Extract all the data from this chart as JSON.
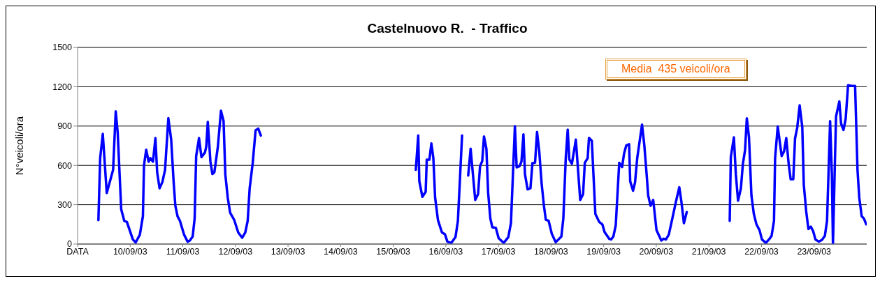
{
  "chart_data": {
    "type": "line",
    "title": "Castelnuovo R.  - Traffico",
    "ylabel": "N°veicoli/ora",
    "annotations": [
      "Media  435 veicoli/ora"
    ],
    "xlim": [
      "--09-09",
      "--09-24"
    ],
    "xticks": [
      {
        "value": "--09-09",
        "label": "DATA"
      },
      {
        "value": "--09-10",
        "label": "10/09/03"
      },
      {
        "value": "--09-11",
        "label": "11/09/03"
      },
      {
        "value": "--09-12",
        "label": "12/09/03"
      },
      {
        "value": "--09-13",
        "label": "13/09/03"
      },
      {
        "value": "--09-14",
        "label": "14/09/03"
      },
      {
        "value": "--09-15",
        "label": "15/09/03"
      },
      {
        "value": "--09-16",
        "label": "16/09/03"
      },
      {
        "value": "--09-17",
        "label": "17/09/03"
      },
      {
        "value": "--09-18",
        "label": "18/09/03"
      },
      {
        "value": "--09-19",
        "label": "19/09/03"
      },
      {
        "value": "--09-20",
        "label": "20/09/03"
      },
      {
        "value": "--09-21",
        "label": "21/09/03"
      },
      {
        "value": "--09-22",
        "label": "22/09/03"
      },
      {
        "value": "--09-23",
        "label": "23/09/03"
      }
    ],
    "ylim": [
      0,
      1500
    ],
    "yticks": [
      0,
      300,
      600,
      900,
      1200,
      1500
    ],
    "grid": "y",
    "marker": "none",
    "line_style": "solid",
    "series": [
      {
        "color": "#0000ff",
        "x": [
          "--09-09T09:30",
          "--09-09T10:18",
          "--09-09T11:30",
          "--09-09T13:18",
          "--09-09T16:12",
          "--09-09T17:24",
          "--09-09T18:18",
          "--09-09T19:54",
          "--09-09T21:18",
          "--09-09T22:30",
          "--09-10T01:12",
          "--09-10T02:30",
          "--09-10T04:24",
          "--09-10T05:48",
          "--09-10T06:18",
          "--09-10T07:18",
          "--09-10T08:24",
          "--09-10T09:12",
          "--09-10T10:24",
          "--09-10T11:30",
          "--09-10T12:18",
          "--09-10T13:24",
          "--09-10T14:42",
          "--09-10T15:54",
          "--09-10T17:24",
          "--09-10T18:42",
          "--09-10T19:48",
          "--09-10T20:36",
          "--09-10T21:36",
          "--09-10T22:42",
          "--09-11T00:36",
          "--09-11T02:12",
          "--09-11T03:12",
          "--09-11T04:30",
          "--09-11T05:24",
          "--09-11T06:06",
          "--09-11T07:24",
          "--09-11T08:30",
          "--09-11T10:06",
          "--09-11T10:42",
          "--09-11T11:24",
          "--09-11T12:36",
          "--09-11T13:30",
          "--09-11T14:24",
          "--09-11T16:00",
          "--09-11T17:24",
          "--09-11T18:36",
          "--09-11T19:24",
          "--09-11T20:30",
          "--09-11T21:36",
          "--09-11T23:24",
          "--09-12T01:18",
          "--09-12T03:06",
          "--09-12T04:30",
          "--09-12T05:36",
          "--09-12T06:30",
          "--09-12T07:54",
          "--09-12T09:12",
          "--09-12T10:24",
          "--09-12T11:36",
          "--09-13T04:00",
          "--09-15T10:18",
          "--09-15T11:24",
          "--09-15T11:54",
          "--09-15T13:18",
          "--09-15T14:48",
          "--09-15T15:18",
          "--09-15T16:30",
          "--09-15T17:24",
          "--09-15T18:18",
          "--09-15T19:06",
          "--09-15T20:24",
          "--09-15T22:12",
          "--09-15T23:36",
          "--09-16T00:42",
          "--09-16T02:30",
          "--09-16T04:24",
          "--09-16T05:30",
          "--09-16T07:24",
          "--09-16T08:48",
          "--09-16T10:12",
          "--09-16T11:18",
          "--09-16T13:24",
          "--09-16T14:42",
          "--09-16T15:36",
          "--09-16T16:36",
          "--09-16T17:24",
          "--09-16T18:30",
          "--09-16T19:18",
          "--09-16T20:18",
          "--09-16T21:12",
          "--09-16T22:48",
          "--09-17T00:06",
          "--09-17T02:24",
          "--09-17T04:30",
          "--09-17T05:42",
          "--09-17T07:30",
          "--09-17T08:18",
          "--09-17T09:36",
          "--09-17T10:30",
          "--09-17T11:24",
          "--09-17T12:06",
          "--09-17T13:18",
          "--09-17T14:36",
          "--09-17T15:30",
          "--09-17T16:42",
          "--09-17T17:36",
          "--09-17T18:36",
          "--09-17T19:42",
          "--09-17T20:48",
          "--09-17T21:36",
          "--09-17T22:54",
          "--09-18T00:18",
          "--09-18T02:06",
          "--09-18T04:42",
          "--09-18T05:36",
          "--09-18T06:42",
          "--09-18T07:36",
          "--09-18T08:18",
          "--09-18T09:30",
          "--09-18T11:18",
          "--09-18T13:18",
          "--09-18T14:36",
          "--09-18T15:24",
          "--09-18T16:42",
          "--09-18T17:18",
          "--09-18T18:36",
          "--09-18T20:12",
          "--09-18T22:00",
          "--09-18T23:24",
          "--09-19T00:24",
          "--09-19T02:36",
          "--09-19T03:24",
          "--09-19T04:24",
          "--09-19T05:30",
          "--09-19T07:06",
          "--09-19T08:24",
          "--09-19T09:18",
          "--09-19T10:18",
          "--09-19T11:36",
          "--09-19T12:06",
          "--09-19T13:24",
          "--09-19T14:18",
          "--09-19T15:18",
          "--09-19T17:30",
          "--09-19T18:30",
          "--09-19T19:36",
          "--09-19T20:18",
          "--09-19T21:24",
          "--09-19T22:36",
          "--09-20T00:06",
          "--09-20T02:18",
          "--09-20T03:18",
          "--09-20T04:24",
          "--09-20T05:42",
          "--09-20T07:06",
          "--09-20T08:54",
          "--09-20T10:30",
          "--09-20T11:30",
          "--09-20T12:36",
          "--09-20T13:54",
          "--09-20T23:00",
          "--09-21T09:30",
          "--09-21T10:00",
          "--09-21T11:24",
          "--09-21T12:18",
          "--09-21T13:18",
          "--09-21T14:36",
          "--09-21T15:30",
          "--09-21T16:30",
          "--09-21T17:18",
          "--09-21T18:18",
          "--09-21T19:24",
          "--09-21T20:30",
          "--09-21T21:42",
          "--09-21T23:06",
          "--09-22T00:12",
          "--09-22T02:00",
          "--09-22T03:36",
          "--09-22T04:36",
          "--09-22T05:42",
          "--09-22T06:12",
          "--09-22T07:24",
          "--09-22T09:12",
          "--09-22T10:18",
          "--09-22T11:18",
          "--09-22T12:24",
          "--09-22T13:18",
          "--09-22T14:30",
          "--09-22T15:18",
          "--09-22T16:18",
          "--09-22T17:24",
          "--09-22T18:36",
          "--09-22T19:18",
          "--09-22T20:24",
          "--09-22T21:24",
          "--09-22T22:30",
          "--09-22T23:36",
          "--09-23T00:36",
          "--09-23T02:12",
          "--09-23T03:36",
          "--09-23T04:54",
          "--09-23T05:54",
          "--09-23T07:18",
          "--09-23T08:06",
          "--09-23T08:36",
          "--09-23T09:18",
          "--09-23T10:00",
          "--09-23T11:30",
          "--09-23T12:18",
          "--09-23T13:24",
          "--09-23T14:24",
          "--09-23T15:30",
          "--09-23T17:06",
          "--09-23T18:42",
          "--09-23T19:48",
          "--09-23T20:36",
          "--09-23T21:42",
          "--09-23T22:42",
          "--09-23T23:48"
        ],
        "values": [
          182,
          655,
          840,
          389,
          566,
          1012,
          849,
          265,
          177,
          168,
          35,
          12,
          71,
          212,
          601,
          720,
          628,
          655,
          628,
          808,
          548,
          425,
          474,
          566,
          960,
          796,
          478,
          292,
          212,
          177,
          71,
          18,
          27,
          57,
          195,
          672,
          808,
          663,
          699,
          743,
          932,
          628,
          534,
          548,
          743,
          1017,
          938,
          531,
          354,
          239,
          186,
          88,
          48,
          88,
          177,
          425,
          619,
          867,
          881,
          828,
          null,
          567,
          828,
          479,
          360,
          399,
          644,
          644,
          768,
          656,
          355,
          183,
          89,
          74,
          18,
          9,
          53,
          177,
          828,
          null,
          523,
          727,
          337,
          381,
          594,
          633,
          821,
          727,
          390,
          195,
          128,
          124,
          44,
          9,
          53,
          160,
          899,
          585,
          594,
          629,
          837,
          532,
          417,
          426,
          617,
          621,
          855,
          709,
          461,
          284,
          186,
          177,
          80,
          14,
          57,
          195,
          656,
          872,
          647,
          612,
          796,
          337,
          381,
          620,
          655,
          810,
          787,
          230,
          168,
          150,
          92,
          39,
          35,
          57,
          142,
          620,
          587,
          690,
          752,
          761,
          478,
          407,
          469,
          655,
          911,
          761,
          531,
          371,
          292,
          336,
          106,
          27,
          41,
          35,
          71,
          177,
          318,
          433,
          318,
          159,
          244,
          null,
          177,
          663,
          814,
          531,
          331,
          425,
          610,
          716,
          959,
          814,
          371,
          230,
          150,
          106,
          35,
          9,
          39,
          62,
          177,
          655,
          897,
          672,
          708,
          808,
          610,
          495,
          495,
          805,
          888,
          1058,
          893,
          451,
          248,
          115,
          133,
          97,
          35,
          18,
          32,
          62,
          177,
          938,
          531,
          0,
          495,
          973,
          1088,
          920,
          870,
          955,
          1212,
          1206,
          1206,
          566,
          354,
          212,
          195,
          150
        ]
      }
    ]
  }
}
